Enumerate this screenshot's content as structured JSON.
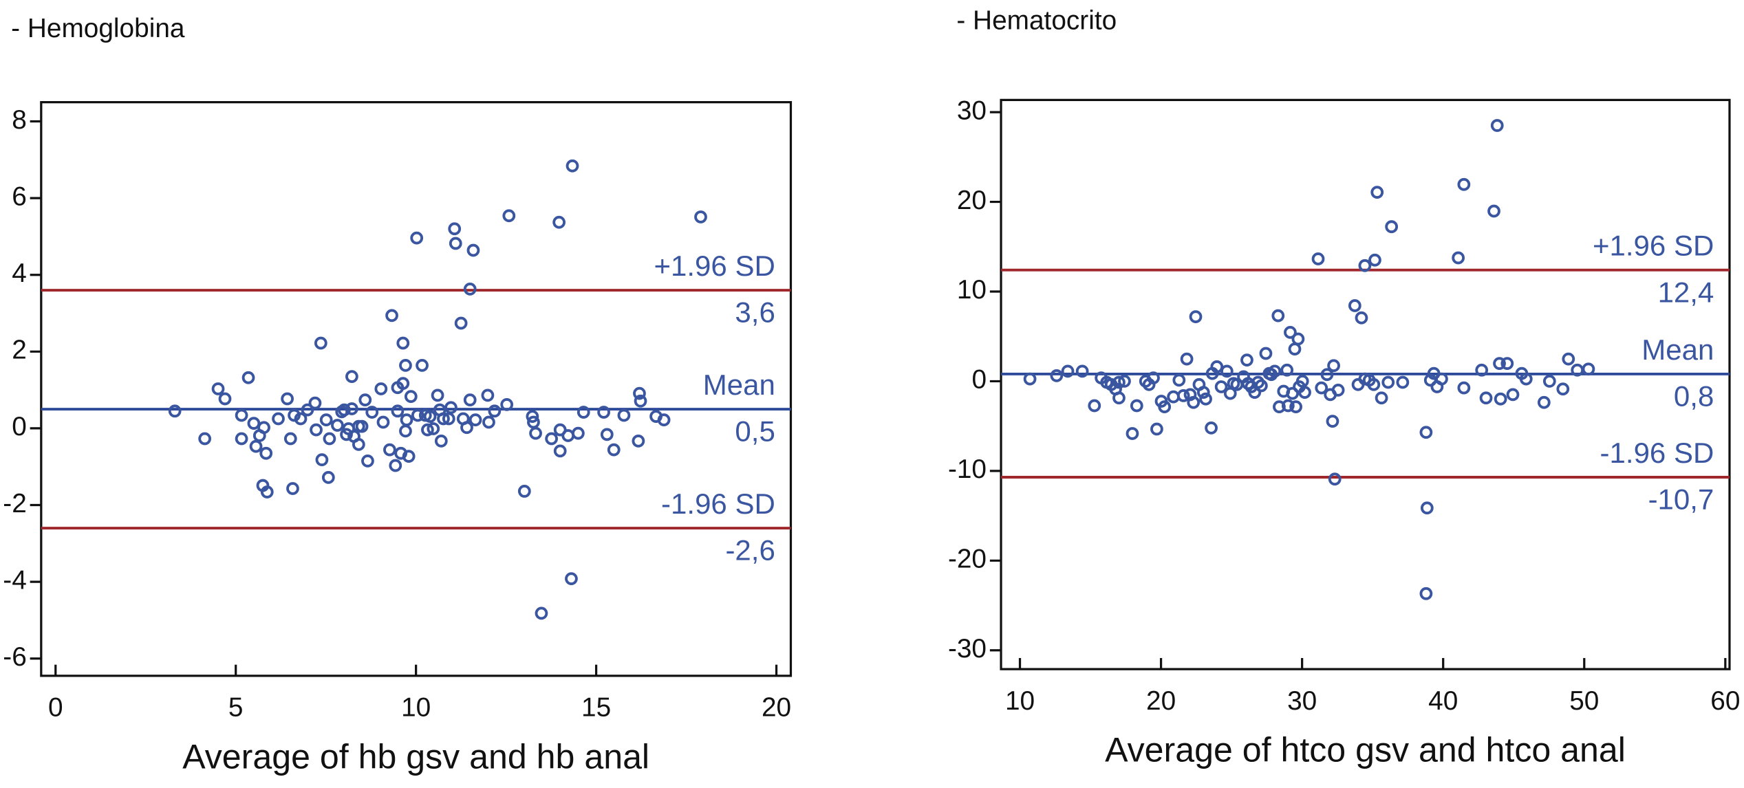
{
  "chart_data": [
    {
      "type": "scatter",
      "title": "- Hemoglobina",
      "x_label": "Average of hb gsv and hb anal",
      "color": "#3a56a0",
      "xlim": [
        -0.4,
        20.4
      ],
      "ylim": [
        -6.45,
        8.5
      ],
      "xticks": [
        0,
        5,
        10,
        15,
        20
      ],
      "yticks": [
        -6,
        -4,
        -2,
        0,
        2,
        4,
        6,
        8
      ],
      "reference_lines": [
        {
          "name": "+1.96 SD",
          "value": 3.6,
          "value_label": "3,6",
          "color": "#a0282d"
        },
        {
          "name": "Mean",
          "value": 0.5,
          "value_label": "0,5",
          "color": "#2e4a9a"
        },
        {
          "name": "-1.96 SD",
          "value": -2.6,
          "value_label": "-2,6",
          "color": "#a0282d"
        }
      ],
      "x": [
        3.31,
        4.14,
        4.51,
        4.7,
        5.16,
        5.16,
        5.35,
        5.5,
        5.56,
        5.66,
        5.78,
        5.84,
        5.75,
        5.87,
        6.18,
        6.43,
        6.52,
        6.58,
        6.62,
        6.8,
        6.99,
        7.2,
        7.23,
        7.36,
        7.39,
        7.51,
        7.57,
        7.6,
        7.82,
        7.94,
        8.01,
        8.07,
        8.13,
        8.22,
        8.22,
        8.28,
        8.41,
        8.41,
        8.5,
        8.59,
        8.66,
        8.78,
        9.03,
        9.09,
        9.27,
        9.33,
        9.43,
        9.49,
        9.49,
        9.58,
        9.64,
        9.64,
        9.71,
        9.71,
        9.74,
        9.8,
        9.86,
        10.02,
        10.05,
        10.17,
        10.26,
        10.32,
        10.39,
        10.48,
        10.6,
        10.66,
        10.7,
        10.76,
        10.91,
        10.97,
        11.07,
        11.1,
        11.25,
        11.31,
        11.41,
        11.5,
        11.59,
        11.5,
        11.65,
        11.99,
        12.02,
        12.18,
        12.52,
        12.58,
        13.01,
        13.23,
        13.26,
        13.32,
        13.48,
        13.76,
        13.97,
        14.0,
        14.0,
        14.22,
        14.31,
        14.34,
        14.5,
        14.65,
        15.21,
        15.3,
        15.49,
        15.77,
        16.17,
        16.2,
        16.23,
        16.66,
        16.88,
        17.9
      ],
      "values": [
        0.45,
        -0.27,
        1.03,
        0.77,
        0.34,
        -0.27,
        1.32,
        0.13,
        -0.47,
        -0.19,
        0.02,
        -0.65,
        -1.49,
        -1.66,
        0.25,
        0.77,
        -0.27,
        -1.57,
        0.34,
        0.25,
        0.48,
        0.66,
        -0.04,
        2.22,
        -0.82,
        0.22,
        -1.28,
        -0.27,
        0.08,
        0.43,
        0.48,
        -0.16,
        -0.01,
        0.51,
        1.35,
        -0.21,
        0.05,
        -0.42,
        0.05,
        0.74,
        -0.85,
        0.42,
        1.03,
        0.16,
        -0.56,
        2.94,
        -0.97,
        1.06,
        0.45,
        -0.65,
        1.17,
        2.22,
        1.64,
        -0.07,
        0.22,
        -0.73,
        0.83,
        4.96,
        0.34,
        1.64,
        0.34,
        -0.04,
        0.31,
        -0.01,
        0.86,
        0.48,
        -0.33,
        0.25,
        0.25,
        0.54,
        5.2,
        4.82,
        2.74,
        0.25,
        0.02,
        0.74,
        4.64,
        3.63,
        0.22,
        0.86,
        0.16,
        0.45,
        0.62,
        5.54,
        -1.64,
        0.31,
        0.16,
        -0.13,
        -4.82,
        -0.27,
        5.37,
        -0.04,
        -0.59,
        -0.19,
        -3.92,
        6.84,
        -0.13,
        0.42,
        0.42,
        -0.16,
        -0.56,
        0.34,
        -0.33,
        0.91,
        0.71,
        0.31,
        0.22,
        5.51
      ]
    },
    {
      "type": "scatter",
      "title": "- Hematocrito",
      "x_label": "Average of htco gsv and htco anal",
      "color": "#3a56a0",
      "xlim": [
        8.66,
        60.3
      ],
      "ylim": [
        -32.1,
        31.36
      ],
      "xticks": [
        10,
        20,
        30,
        40,
        50,
        60
      ],
      "yticks": [
        -30,
        -20,
        -10,
        0,
        10,
        20,
        30
      ],
      "reference_lines": [
        {
          "name": "+1.96 SD",
          "value": 12.4,
          "value_label": "12,4",
          "color": "#a0282d"
        },
        {
          "name": "Mean",
          "value": 0.8,
          "value_label": "0,8",
          "color": "#2e4a9a"
        },
        {
          "name": "-1.96 SD",
          "value": -10.7,
          "value_label": "-10,7",
          "color": "#a0282d"
        }
      ],
      "x": [
        10.71,
        12.6,
        13.39,
        14.42,
        15.28,
        15.76,
        16.15,
        16.47,
        16.78,
        17.02,
        17.02,
        17.41,
        17.97,
        18.28,
        18.91,
        19.15,
        19.46,
        19.7,
        20.02,
        20.25,
        20.88,
        21.28,
        21.59,
        21.83,
        22.07,
        22.3,
        22.46,
        22.7,
        23.01,
        23.17,
        23.56,
        23.64,
        23.96,
        24.27,
        24.67,
        24.91,
        25.14,
        25.38,
        25.85,
        26.09,
        26.17,
        26.4,
        26.64,
        26.88,
        27.11,
        27.43,
        27.67,
        27.82,
        28.06,
        28.3,
        28.38,
        28.69,
        28.93,
        29.01,
        29.16,
        29.32,
        29.56,
        29.48,
        29.72,
        29.8,
        30.03,
        30.19,
        31.14,
        31.37,
        31.77,
        32.0,
        32.16,
        32.24,
        32.32,
        32.56,
        33.74,
        33.97,
        34.21,
        34.45,
        34.45,
        34.76,
        35.16,
        35.08,
        35.32,
        35.63,
        36.1,
        36.34,
        37.13,
        38.79,
        38.86,
        38.79,
        39.1,
        39.34,
        39.57,
        39.89,
        41.07,
        41.47,
        41.47,
        42.73,
        43.04,
        43.6,
        43.83,
        43.99,
        44.07,
        44.54,
        44.94,
        45.57,
        45.88,
        47.15,
        47.54,
        48.49,
        48.88,
        49.51,
        50.3
      ],
      "values": [
        0.25,
        0.62,
        1.12,
        1.12,
        -2.73,
        0.37,
        -0.12,
        -0.37,
        -0.87,
        -1.86,
        -0.12,
        0,
        -5.83,
        -2.73,
        0,
        -0.37,
        0.37,
        -5.33,
        -2.23,
        -2.85,
        -1.74,
        0.12,
        -1.61,
        2.48,
        -1.49,
        -2.36,
        7.19,
        -0.37,
        -1.24,
        -1.98,
        -5.21,
        0.87,
        1.61,
        -0.62,
        1.12,
        -1.36,
        -0.25,
        -0.37,
        0.5,
        2.36,
        -0.25,
        -0.62,
        -1.24,
        -0.12,
        -0.5,
        3.1,
        0.87,
        0.74,
        1.12,
        7.31,
        -2.85,
        -1.12,
        1.24,
        -2.73,
        5.45,
        -1.36,
        -2.85,
        3.59,
        4.71,
        -0.62,
        0,
        -1.24,
        13.64,
        -0.74,
        0.74,
        -1.49,
        -4.46,
        1.74,
        -10.91,
        -0.99,
        8.43,
        -0.37,
        7.07,
        12.89,
        0.25,
        0.12,
        13.51,
        -0.37,
        21.07,
        -1.86,
        -0.12,
        17.23,
        -0.12,
        -5.7,
        -14.13,
        -23.68,
        0.12,
        0.87,
        -0.62,
        0.25,
        13.76,
        -0.74,
        21.94,
        1.24,
        -1.86,
        18.97,
        28.51,
        1.98,
        -1.98,
        1.98,
        -1.49,
        0.87,
        0.25,
        -2.36,
        0,
        -0.87,
        2.48,
        1.24,
        1.36
      ]
    }
  ]
}
